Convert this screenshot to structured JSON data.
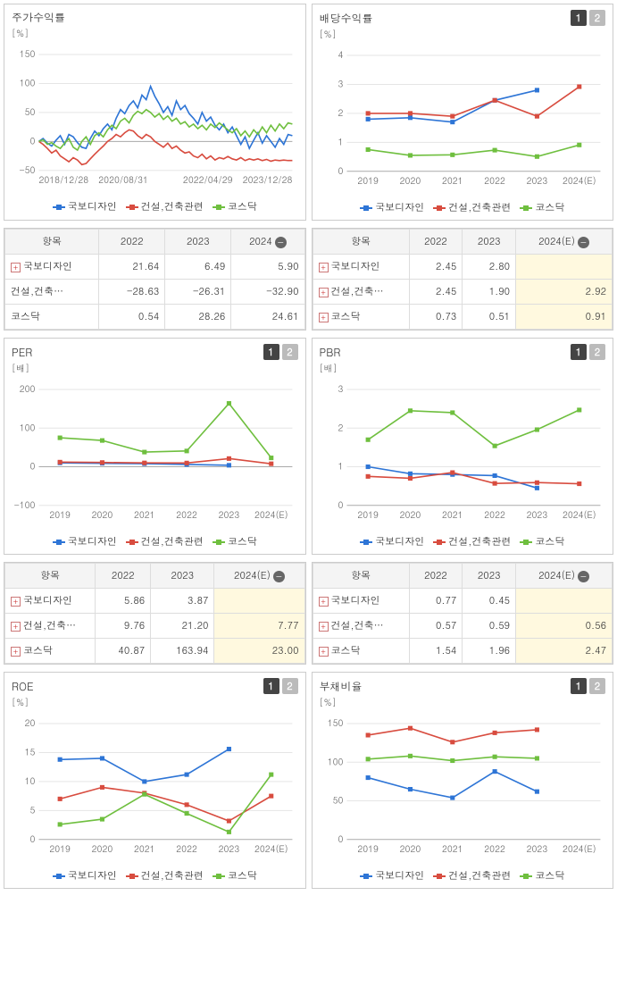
{
  "colors": {
    "blue": "#2e75d6",
    "red": "#d84c3f",
    "green": "#6fbf3f",
    "grid": "#e5e5e5",
    "axis": "#aaaaaa",
    "text": "#666666",
    "hl": "#fff9df"
  },
  "legend_labels": {
    "blue": "국보디자인",
    "red": "건설,건축관련",
    "green": "코스닥"
  },
  "pagers": [
    "1",
    "2"
  ],
  "panels": {
    "price": {
      "title": "주가수익률",
      "ylabel": "[%]",
      "ylim": [
        -50,
        150
      ],
      "yticks": [
        -50,
        0,
        50,
        100,
        150
      ],
      "xlabels": [
        "2018/12/28",
        "2020/08/31",
        "2022/04/29",
        "2023/12/28"
      ],
      "xdense_count": 60,
      "series": {
        "blue": [
          0,
          5,
          -3,
          -8,
          2,
          10,
          -5,
          12,
          8,
          -2,
          -10,
          -12,
          5,
          18,
          10,
          22,
          30,
          20,
          40,
          55,
          48,
          62,
          70,
          58,
          80,
          72,
          95,
          78,
          65,
          50,
          60,
          45,
          70,
          55,
          62,
          48,
          40,
          30,
          50,
          35,
          42,
          28,
          20,
          30,
          15,
          25,
          10,
          -5,
          8,
          -12,
          2,
          15,
          -3,
          10,
          0,
          -10,
          5,
          -5,
          12,
          10
        ],
        "red": [
          0,
          -5,
          -12,
          -20,
          -15,
          -25,
          -30,
          -35,
          -28,
          -32,
          -40,
          -38,
          -30,
          -22,
          -15,
          -8,
          0,
          5,
          12,
          8,
          15,
          20,
          18,
          10,
          5,
          12,
          8,
          0,
          -5,
          -10,
          -3,
          -12,
          -8,
          -15,
          -20,
          -18,
          -25,
          -28,
          -22,
          -30,
          -25,
          -32,
          -28,
          -30,
          -26,
          -30,
          -32,
          -28,
          -33,
          -30,
          -32,
          -30,
          -33,
          -31,
          -34,
          -32,
          -33,
          -32,
          -33,
          -33
        ],
        "green": [
          0,
          3,
          -5,
          -2,
          -8,
          -12,
          -3,
          5,
          -10,
          -15,
          0,
          8,
          -5,
          10,
          15,
          8,
          20,
          28,
          22,
          35,
          40,
          32,
          45,
          52,
          48,
          55,
          50,
          42,
          48,
          38,
          44,
          35,
          40,
          30,
          34,
          25,
          30,
          22,
          28,
          20,
          30,
          24,
          32,
          26,
          20,
          15,
          22,
          10,
          18,
          8,
          20,
          12,
          25,
          15,
          28,
          18,
          30,
          22,
          32,
          30
        ]
      }
    },
    "dividend": {
      "title": "배당수익률",
      "has_pager": true,
      "ylabel": "[%]",
      "ylim": [
        0,
        4
      ],
      "yticks": [
        0,
        1,
        2,
        3,
        4
      ],
      "xlabels": [
        "2019",
        "2020",
        "2021",
        "2022",
        "2023",
        "2024(E)"
      ],
      "series": {
        "blue": [
          1.8,
          1.85,
          1.7,
          2.45,
          2.8,
          null
        ],
        "red": [
          2.0,
          2.0,
          1.9,
          2.45,
          1.9,
          2.92
        ],
        "green": [
          0.75,
          0.55,
          0.57,
          0.73,
          0.51,
          0.91
        ]
      }
    },
    "per": {
      "title": "PER",
      "has_pager": true,
      "ylabel": "[배]",
      "ylim": [
        -100,
        200
      ],
      "yticks": [
        -100,
        0,
        100,
        200
      ],
      "xlabels": [
        "2019",
        "2020",
        "2021",
        "2022",
        "2023",
        "2024(E)"
      ],
      "series": {
        "blue": [
          10,
          9,
          8,
          5.86,
          3.87,
          null
        ],
        "red": [
          12,
          11,
          10,
          9.76,
          21.2,
          7.77
        ],
        "green": [
          75,
          68,
          38,
          40.87,
          163.94,
          23.0
        ]
      }
    },
    "pbr": {
      "title": "PBR",
      "has_pager": true,
      "ylabel": "[배]",
      "ylim": [
        0,
        3
      ],
      "yticks": [
        0,
        1,
        2,
        3
      ],
      "xlabels": [
        "2019",
        "2020",
        "2021",
        "2022",
        "2023",
        "2024(E)"
      ],
      "series": {
        "blue": [
          1.0,
          0.82,
          0.8,
          0.77,
          0.45,
          null
        ],
        "red": [
          0.75,
          0.7,
          0.85,
          0.57,
          0.59,
          0.56
        ],
        "green": [
          1.7,
          2.45,
          2.4,
          1.54,
          1.96,
          2.47
        ]
      }
    },
    "roe": {
      "title": "ROE",
      "has_pager": true,
      "ylabel": "[%]",
      "ylim": [
        0,
        20
      ],
      "yticks": [
        0,
        5,
        10,
        15,
        20
      ],
      "xlabels": [
        "2019",
        "2020",
        "2021",
        "2022",
        "2023",
        "2024(E)"
      ],
      "series": {
        "blue": [
          13.8,
          14.0,
          10.0,
          11.2,
          15.6,
          null
        ],
        "red": [
          7.0,
          9.0,
          8.0,
          6.0,
          3.2,
          7.5
        ],
        "green": [
          2.6,
          3.5,
          7.8,
          4.5,
          1.3,
          11.2
        ]
      }
    },
    "debt": {
      "title": "부채비율",
      "has_pager": true,
      "ylabel": "[%]",
      "ylim": [
        0,
        150
      ],
      "yticks": [
        0,
        50,
        100,
        150
      ],
      "xlabels": [
        "2019",
        "2020",
        "2021",
        "2022",
        "2023",
        "2024(E)"
      ],
      "series": {
        "blue": [
          80,
          65,
          54,
          88,
          62,
          null
        ],
        "red": [
          135,
          144,
          126,
          138,
          142,
          null
        ],
        "green": [
          104,
          108,
          102,
          107,
          105,
          null
        ]
      }
    }
  },
  "tables": {
    "t1": {
      "header_first": "항목",
      "cols": [
        "2022",
        "2023",
        "2024"
      ],
      "collapse_last": true,
      "hl_last": false,
      "rows": [
        {
          "expand": true,
          "label": "국보디자인",
          "vals": [
            "21.64",
            "6.49",
            "5.90"
          ]
        },
        {
          "expand": false,
          "label": "건설,건축…",
          "vals": [
            "-28.63",
            "-26.31",
            "-32.90"
          ]
        },
        {
          "expand": false,
          "label": "코스닥",
          "vals": [
            "0.54",
            "28.26",
            "24.61"
          ]
        }
      ]
    },
    "t2": {
      "header_first": "항목",
      "cols": [
        "2022",
        "2023",
        "2024(E)"
      ],
      "collapse_last": true,
      "hl_last": true,
      "rows": [
        {
          "expand": true,
          "label": "국보디자인",
          "vals": [
            "2.45",
            "2.80",
            ""
          ]
        },
        {
          "expand": true,
          "label": "건설,건축…",
          "vals": [
            "2.45",
            "1.90",
            "2.92"
          ]
        },
        {
          "expand": true,
          "label": "코스닥",
          "vals": [
            "0.73",
            "0.51",
            "0.91"
          ]
        }
      ]
    },
    "t3": {
      "header_first": "항목",
      "cols": [
        "2022",
        "2023",
        "2024(E)"
      ],
      "collapse_last": true,
      "hl_last": true,
      "rows": [
        {
          "expand": true,
          "label": "국보디자인",
          "vals": [
            "5.86",
            "3.87",
            ""
          ]
        },
        {
          "expand": true,
          "label": "건설,건축…",
          "vals": [
            "9.76",
            "21.20",
            "7.77"
          ]
        },
        {
          "expand": true,
          "label": "코스닥",
          "vals": [
            "40.87",
            "163.94",
            "23.00"
          ]
        }
      ]
    },
    "t4": {
      "header_first": "항목",
      "cols": [
        "2022",
        "2023",
        "2024(E)"
      ],
      "collapse_last": true,
      "hl_last": true,
      "rows": [
        {
          "expand": true,
          "label": "국보디자인",
          "vals": [
            "0.77",
            "0.45",
            ""
          ]
        },
        {
          "expand": true,
          "label": "건설,건축…",
          "vals": [
            "0.57",
            "0.59",
            "0.56"
          ]
        },
        {
          "expand": true,
          "label": "코스닥",
          "vals": [
            "1.54",
            "1.96",
            "2.47"
          ]
        }
      ]
    }
  },
  "layout": [
    {
      "type": "chart-row",
      "left": "price",
      "right": "dividend"
    },
    {
      "type": "table-row",
      "left": "t1",
      "right": "t2"
    },
    {
      "type": "chart-row",
      "left": "per",
      "right": "pbr"
    },
    {
      "type": "table-row",
      "left": "t3",
      "right": "t4"
    },
    {
      "type": "chart-row",
      "left": "roe",
      "right": "debt"
    }
  ]
}
